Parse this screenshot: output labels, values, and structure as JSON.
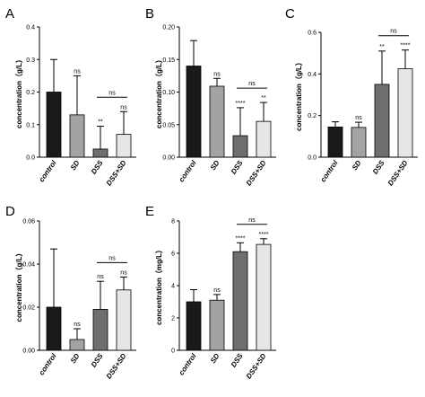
{
  "chart_data": [
    {
      "letter": "A",
      "type": "bar",
      "ylabel": "concentration（g/L）",
      "ylim": [
        0,
        0.4
      ],
      "yticks": [
        "0.0",
        "0.1",
        "0.2",
        "0.3",
        "0.4"
      ],
      "categories": [
        "control",
        "SD",
        "DSS",
        "DSS+SD"
      ],
      "values": [
        0.2,
        0.13,
        0.025,
        0.07
      ],
      "errors": [
        0.1,
        0.12,
        0.07,
        0.07
      ],
      "sig": [
        "",
        "ns",
        "**",
        "ns"
      ],
      "bracket": "ns"
    },
    {
      "letter": "B",
      "type": "bar",
      "ylabel": "concentration（g/L）",
      "ylim": [
        0,
        0.2
      ],
      "yticks": [
        "0.00",
        "0.05",
        "0.10",
        "0.15",
        "0.20"
      ],
      "categories": [
        "control",
        "SD",
        "DSS",
        "DSS+SD"
      ],
      "values": [
        0.14,
        0.109,
        0.033,
        0.055
      ],
      "errors": [
        0.039,
        0.012,
        0.043,
        0.029
      ],
      "sig": [
        "",
        "ns",
        "****",
        "**"
      ],
      "bracket": "ns"
    },
    {
      "letter": "C",
      "type": "bar",
      "ylabel": "concentration（g/L）",
      "ylim": [
        0,
        0.6
      ],
      "yticks": [
        "0.0",
        "0.2",
        "0.4",
        "0.6"
      ],
      "categories": [
        "control",
        "SD",
        "DSS",
        "DSS+SD"
      ],
      "values": [
        0.145,
        0.143,
        0.35,
        0.425
      ],
      "errors": [
        0.025,
        0.025,
        0.16,
        0.09
      ],
      "sig": [
        "",
        "ns",
        "**",
        "****"
      ],
      "bracket": "ns"
    },
    {
      "letter": "D",
      "type": "bar",
      "ylabel": "concentration（g/L）",
      "ylim": [
        0,
        0.06
      ],
      "yticks": [
        "0.00",
        "0.02",
        "0.04",
        "0.06"
      ],
      "categories": [
        "control",
        "SD",
        "DSS",
        "DSS+SD"
      ],
      "values": [
        0.02,
        0.005,
        0.019,
        0.028
      ],
      "errors": [
        0.027,
        0.005,
        0.013,
        0.006
      ],
      "sig": [
        "",
        "ns",
        "ns",
        "ns"
      ],
      "bracket": "ns"
    },
    {
      "letter": "E",
      "type": "bar",
      "ylabel": "concentration（mg/L）",
      "ylim": [
        0,
        8
      ],
      "yticks": [
        "0",
        "2",
        "4",
        "6",
        "8"
      ],
      "categories": [
        "control",
        "SD",
        "DSS",
        "DSS+SD"
      ],
      "values": [
        3.0,
        3.1,
        6.1,
        6.55
      ],
      "errors": [
        0.75,
        0.35,
        0.55,
        0.35
      ],
      "sig": [
        "",
        "ns",
        "****",
        "****"
      ],
      "bracket": "ns"
    }
  ],
  "colors": [
    "#1a1a1a",
    "#a3a3a3",
    "#6e6e6e",
    "#e6e6e6"
  ]
}
